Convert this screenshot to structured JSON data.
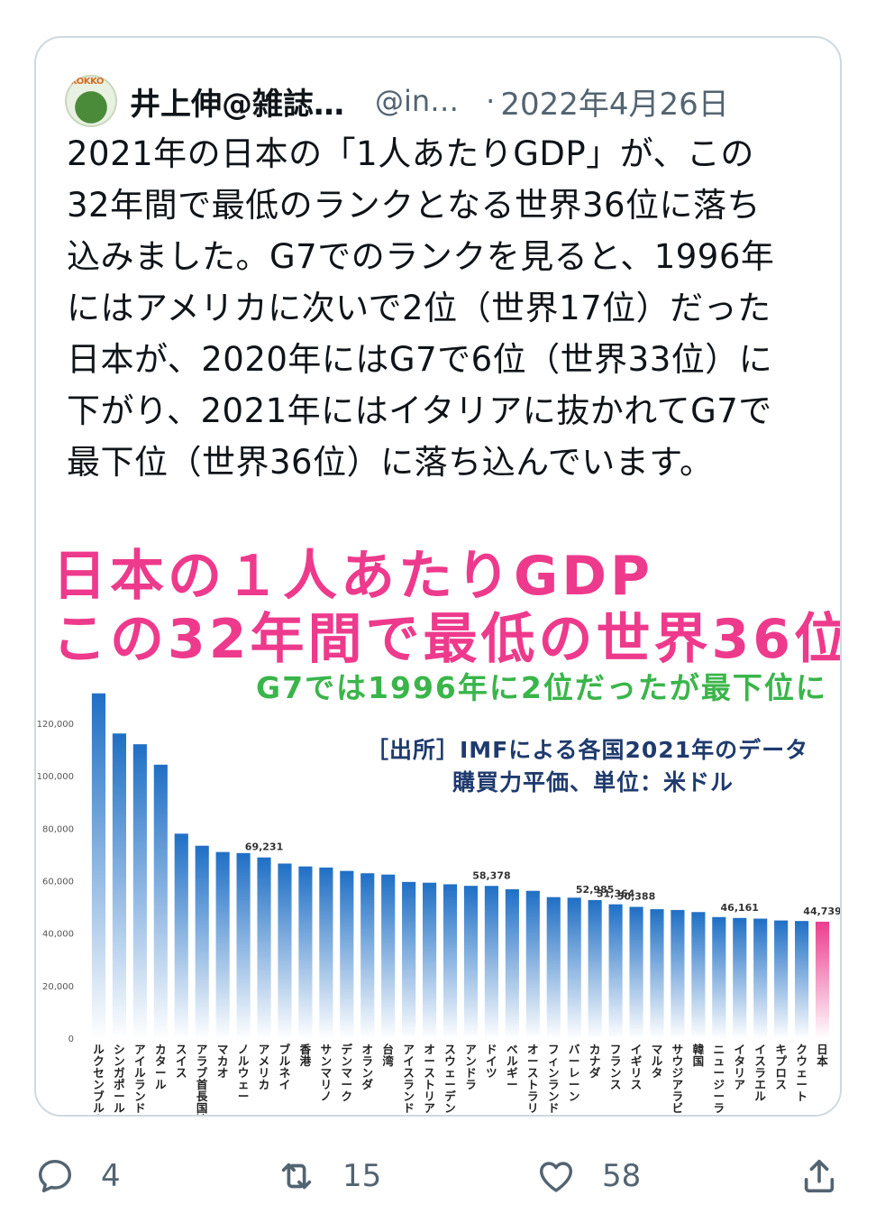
{
  "tweet": {
    "author_name": "井上伸@雑誌…",
    "handle": "@in…",
    "separator": "·",
    "date": "2022年4月26日",
    "avatar_text": "KOKKO",
    "text": "2021年の日本の「1人あたりGDP」が、この\n32年間で最低のランクとなる世界36位に落ち\n込みました。G7でのランクを見ると、1996年\nにはアメリカに次いで2位（世界17位）だった\n日本が、2020年にはG7で6位（世界33位）に\n下がり、2021年にはイタリアに抜かれてG7で\n最下位（世界36位）に落ち込んでいます。"
  },
  "infographic": {
    "headline_1": "日本の１人あたりGDP",
    "headline_2": "この32年間で最低の世界36位",
    "subheadline": "G7では1996年に2位だったが最下位に",
    "source_line_1": "［出所］IMFによる各国2021年のデータ",
    "source_line_2": "購買力平価、単位：米ドル"
  },
  "chart_data": {
    "type": "bar",
    "title": "",
    "xlabel": "",
    "ylabel": "",
    "ylim": [
      0,
      130000
    ],
    "yticks": [
      0,
      20000,
      40000,
      60000,
      80000,
      100000,
      120000
    ],
    "ytick_labels": [
      "0",
      "20,000",
      "40,000",
      "60,000",
      "80,000",
      "100,000",
      "120,000"
    ],
    "grid": false,
    "bar_color": "#1f6fc5",
    "highlight_color": "#ec3d8e",
    "highlight_category": "日本",
    "categories": [
      "ルクセンブルク",
      "シンガポール",
      "アイルランド",
      "カタール",
      "スイス",
      "アラブ首長国連邦",
      "マカオ",
      "ノルウェー",
      "アメリカ",
      "ブルネイ",
      "香港",
      "サンマリノ",
      "デンマーク",
      "オランダ",
      "台湾",
      "アイスランド",
      "オーストリア",
      "スウェーデン",
      "アンドラ",
      "ドイツ",
      "ベルギー",
      "オーストラリア",
      "フィンランド",
      "バーレーン",
      "カナダ",
      "フランス",
      "イギリス",
      "マルタ",
      "サウジアラビア",
      "韓国",
      "ニュージーランド",
      "イタリア",
      "イスラエル",
      "キプロス",
      "クウェート",
      "日本"
    ],
    "values": [
      131800,
      116500,
      112400,
      104600,
      78300,
      73700,
      71300,
      70900,
      69231,
      66900,
      65800,
      65400,
      64100,
      63200,
      62700,
      59900,
      59600,
      59000,
      58400,
      58378,
      57100,
      56500,
      54100,
      53900,
      52985,
      51364,
      50388,
      49500,
      49200,
      48400,
      46500,
      46161,
      45900,
      45200,
      45000,
      44739
    ],
    "data_labels": [
      {
        "category": "アメリカ",
        "text": "69,231"
      },
      {
        "category": "ドイツ",
        "text": "58,378"
      },
      {
        "category": "カナダ",
        "text": "52,985"
      },
      {
        "category": "フランス",
        "text": "51,364"
      },
      {
        "category": "イギリス",
        "text": "50,388"
      },
      {
        "category": "イタリア",
        "text": "46,161"
      },
      {
        "category": "日本",
        "text": "44,739"
      }
    ]
  },
  "actions": {
    "reply_count": "4",
    "retweet_count": "15",
    "like_count": "58",
    "reply_icon": "reply-icon",
    "retweet_icon": "retweet-icon",
    "like_icon": "heart-icon",
    "share_icon": "share-icon"
  }
}
